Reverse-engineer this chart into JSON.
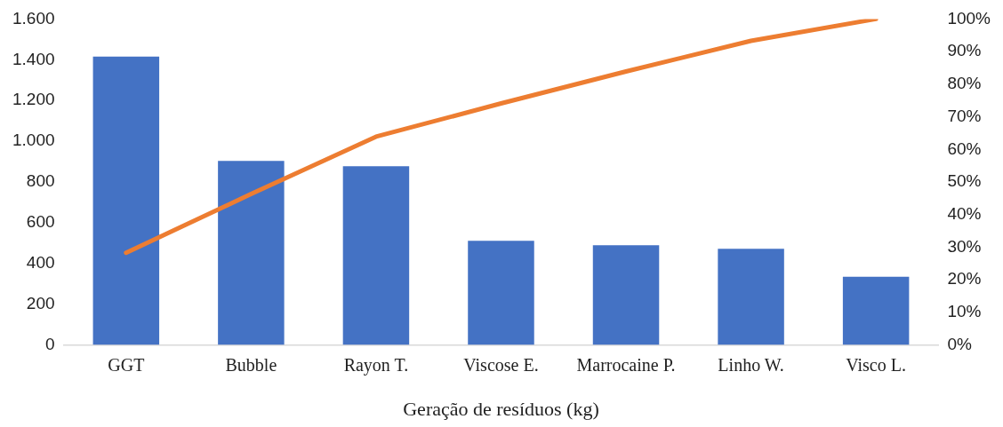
{
  "chart_data": {
    "type": "bar",
    "xlabel": "Geração de resíduos (kg)",
    "categories": [
      "GGT",
      "Bubble",
      "Rayon T.",
      "Viscose E.",
      "Marrocaine P.",
      "Linho W.",
      "Visco L."
    ],
    "series": [
      {
        "color": "#4472c4",
        "values": [
          1415,
          903,
          877,
          511,
          489,
          472,
          335
        ]
      },
      {
        "type": "line",
        "axis": "y2",
        "color": "#ed7d31",
        "values": [
          28.3,
          46.3,
          63.9,
          74.1,
          83.9,
          93.3,
          100
        ]
      }
    ],
    "ylim": [
      0,
      1600
    ],
    "yticks": [
      0,
      {
        "value": 200,
        "label": "200"
      },
      {
        "value": 400,
        "label": "400"
      },
      {
        "value": 600,
        "label": "600"
      },
      {
        "value": 800,
        "label": "800"
      },
      {
        "value": 1000,
        "label": "1.000"
      },
      {
        "value": 1200,
        "label": "1.200"
      },
      {
        "value": 1400,
        "label": "1.400"
      },
      {
        "value": 1600,
        "label": "1.600"
      }
    ],
    "y2lim": [
      0,
      100
    ],
    "y2ticks": [
      {
        "value": 0,
        "label": "0%"
      },
      {
        "value": 10,
        "label": "10%"
      },
      {
        "value": 20,
        "label": "20%"
      },
      {
        "value": 30,
        "label": "30%"
      },
      {
        "value": 40,
        "label": "40%"
      },
      {
        "value": 50,
        "label": "50%"
      },
      {
        "value": 60,
        "label": "60%"
      },
      {
        "value": 70,
        "label": "70%"
      },
      {
        "value": 80,
        "label": "80%"
      },
      {
        "value": 90,
        "label": "90%"
      },
      {
        "value": 100,
        "label": "100%"
      }
    ],
    "grid": false,
    "legend": false,
    "marker": "none"
  }
}
